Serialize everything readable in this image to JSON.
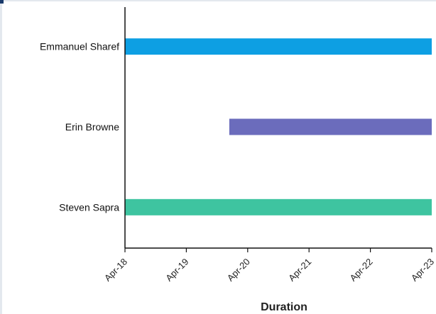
{
  "chart_data": {
    "type": "bar",
    "orientation": "horizontal-gantt",
    "xlabel": "Duration",
    "ylabel": "",
    "x_ticks": [
      "Apr-18",
      "Apr-19",
      "Apr-20",
      "Apr-21",
      "Apr-22",
      "Apr-23"
    ],
    "xlim": [
      "Apr-18",
      "Apr-23"
    ],
    "categories": [
      "Emmanuel Sharef",
      "Erin Browne",
      "Steven Sapra"
    ],
    "series": [
      {
        "bars": [
          {
            "category": "Emmanuel Sharef",
            "start": "Apr-18",
            "end": "Apr-23",
            "color": "#0d9fe3"
          },
          {
            "category": "Erin Browne",
            "start": "Apr-19 (approx. 0.7 of day)",
            "end": "Apr-23",
            "color": "#6b6cbc"
          },
          {
            "category": "Steven Sapra",
            "start": "Apr-18",
            "end": "Apr-23",
            "color": "#3ec4a0"
          }
        ]
      }
    ],
    "bar_starts_days_from_apr18": [
      0,
      1.7,
      0
    ],
    "bar_ends_days_from_apr18": [
      5,
      5,
      5
    ],
    "grid": false,
    "legend": "none"
  }
}
